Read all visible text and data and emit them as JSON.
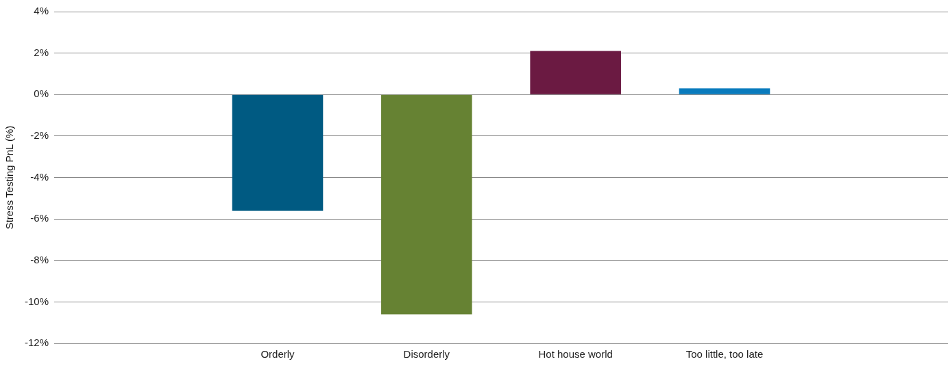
{
  "chart_data": {
    "type": "bar",
    "ylabel": "Stress Testing PnL (%)",
    "categories": [
      null,
      "Orderly",
      "Disorderly",
      "Hot house world",
      "Too little, too late",
      null
    ],
    "values": [
      null,
      -5.6,
      -10.6,
      2.1,
      0.3,
      null
    ],
    "colors": [
      "#005a82",
      "#005a82",
      "#668233",
      "#6b1a42",
      "#0a7bbd",
      "#0a7bbd"
    ],
    "ylim": [
      -12,
      4
    ],
    "yticks": [
      {
        "value": -12,
        "label": "-12%"
      },
      {
        "value": -10,
        "label": "-10%"
      },
      {
        "value": -8,
        "label": "-8%"
      },
      {
        "value": -6,
        "label": "-6%"
      },
      {
        "value": -4,
        "label": "-4%"
      },
      {
        "value": -2,
        "label": "-2%"
      },
      {
        "value": 0,
        "label": "0%"
      },
      {
        "value": 2,
        "label": "2%"
      },
      {
        "value": 4,
        "label": "4%"
      }
    ],
    "grid": "y"
  }
}
